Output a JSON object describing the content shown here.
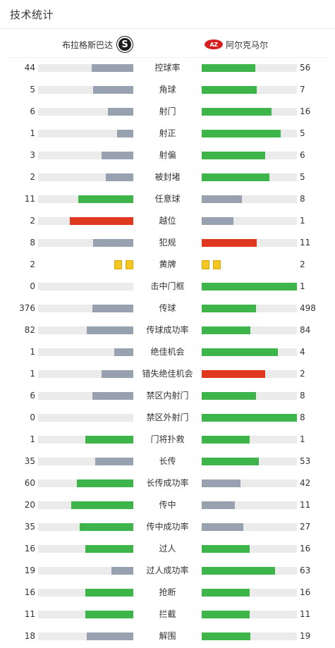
{
  "header": {
    "title": "技术统计"
  },
  "teams": {
    "home": {
      "name": "布拉格斯巴达",
      "logo_icon": "sparta-prague-crest-icon",
      "logo_letter": "S"
    },
    "away": {
      "name": "阿尔克马尔",
      "logo_icon": "az-alkmaar-crest-icon",
      "logo_text": "AZ"
    }
  },
  "colors": {
    "green": "#3db54a",
    "grey": "#97a1b0",
    "red": "#e0381f",
    "track": "#ebebeb",
    "yellow_card": "#f3c623"
  },
  "stats": [
    {
      "label": "控球率",
      "home": "44",
      "away": "56",
      "home_pct": 0.44,
      "away_pct": 0.56,
      "home_color": "grey",
      "away_color": "green"
    },
    {
      "label": "角球",
      "home": "5",
      "away": "7",
      "home_pct": 0.42,
      "away_pct": 0.58,
      "home_color": "grey",
      "away_color": "green"
    },
    {
      "label": "射门",
      "home": "6",
      "away": "16",
      "home_pct": 0.27,
      "away_pct": 0.73,
      "home_color": "grey",
      "away_color": "green"
    },
    {
      "label": "射正",
      "home": "1",
      "away": "5",
      "home_pct": 0.17,
      "away_pct": 0.83,
      "home_color": "grey",
      "away_color": "green"
    },
    {
      "label": "射偏",
      "home": "3",
      "away": "6",
      "home_pct": 0.33,
      "away_pct": 0.67,
      "home_color": "grey",
      "away_color": "green"
    },
    {
      "label": "被封堵",
      "home": "2",
      "away": "5",
      "home_pct": 0.29,
      "away_pct": 0.71,
      "home_color": "grey",
      "away_color": "green"
    },
    {
      "label": "任意球",
      "home": "11",
      "away": "8",
      "home_pct": 0.58,
      "away_pct": 0.42,
      "home_color": "green",
      "away_color": "grey"
    },
    {
      "label": "越位",
      "home": "2",
      "away": "1",
      "home_pct": 0.67,
      "away_pct": 0.33,
      "home_color": "red",
      "away_color": "grey"
    },
    {
      "label": "犯规",
      "home": "8",
      "away": "11",
      "home_pct": 0.42,
      "away_pct": 0.58,
      "home_color": "grey",
      "away_color": "red"
    },
    {
      "label": "黄牌",
      "home": "2",
      "away": "2",
      "type": "cards",
      "home_cards": 2,
      "away_cards": 2
    },
    {
      "label": "击中门框",
      "home": "0",
      "away": "1",
      "home_pct": 0,
      "away_pct": 1,
      "home_color": "grey",
      "away_color": "green"
    },
    {
      "label": "传球",
      "home": "376",
      "away": "498",
      "home_pct": 0.43,
      "away_pct": 0.57,
      "home_color": "grey",
      "away_color": "green"
    },
    {
      "label": "传球成功率",
      "home": "82",
      "away": "84",
      "home_pct": 0.49,
      "away_pct": 0.51,
      "home_color": "grey",
      "away_color": "green"
    },
    {
      "label": "绝佳机会",
      "home": "1",
      "away": "4",
      "home_pct": 0.2,
      "away_pct": 0.8,
      "home_color": "grey",
      "away_color": "green"
    },
    {
      "label": "错失绝佳机会",
      "home": "1",
      "away": "2",
      "home_pct": 0.33,
      "away_pct": 0.67,
      "home_color": "grey",
      "away_color": "red"
    },
    {
      "label": "禁区内射门",
      "home": "6",
      "away": "8",
      "home_pct": 0.43,
      "away_pct": 0.57,
      "home_color": "grey",
      "away_color": "green"
    },
    {
      "label": "禁区外射门",
      "home": "0",
      "away": "8",
      "home_pct": 0,
      "away_pct": 1,
      "home_color": "grey",
      "away_color": "green"
    },
    {
      "label": "门将扑救",
      "home": "1",
      "away": "1",
      "home_pct": 0.5,
      "away_pct": 0.5,
      "home_color": "green",
      "away_color": "green"
    },
    {
      "label": "长传",
      "home": "35",
      "away": "53",
      "home_pct": 0.4,
      "away_pct": 0.6,
      "home_color": "grey",
      "away_color": "green"
    },
    {
      "label": "长传成功率",
      "home": "60",
      "away": "42",
      "home_pct": 0.59,
      "away_pct": 0.41,
      "home_color": "green",
      "away_color": "grey"
    },
    {
      "label": "传中",
      "home": "20",
      "away": "11",
      "home_pct": 0.65,
      "away_pct": 0.35,
      "home_color": "green",
      "away_color": "grey"
    },
    {
      "label": "传中成功率",
      "home": "35",
      "away": "27",
      "home_pct": 0.56,
      "away_pct": 0.44,
      "home_color": "green",
      "away_color": "grey"
    },
    {
      "label": "过人",
      "home": "16",
      "away": "16",
      "home_pct": 0.5,
      "away_pct": 0.5,
      "home_color": "green",
      "away_color": "green"
    },
    {
      "label": "过人成功率",
      "home": "19",
      "away": "63",
      "home_pct": 0.23,
      "away_pct": 0.77,
      "home_color": "grey",
      "away_color": "green"
    },
    {
      "label": "抢断",
      "home": "16",
      "away": "16",
      "home_pct": 0.5,
      "away_pct": 0.5,
      "home_color": "green",
      "away_color": "green"
    },
    {
      "label": "拦截",
      "home": "11",
      "away": "11",
      "home_pct": 0.5,
      "away_pct": 0.5,
      "home_color": "green",
      "away_color": "green"
    },
    {
      "label": "解围",
      "home": "18",
      "away": "19",
      "home_pct": 0.49,
      "away_pct": 0.51,
      "home_color": "grey",
      "away_color": "green"
    }
  ]
}
